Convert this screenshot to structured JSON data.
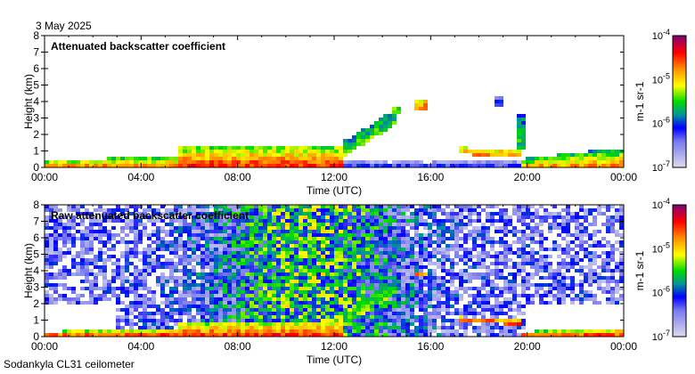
{
  "date_label": "3 May 2025",
  "footer_label": "Sodankyla CL31 ceilometer",
  "chart_data": [
    {
      "type": "heatmap",
      "title": "Attenuated backscatter coefficient",
      "xlabel": "Time (UTC)",
      "ylabel": "Height (km)",
      "xlim": [
        0,
        24
      ],
      "ylim": [
        0,
        8
      ],
      "xticks": [
        "00:00",
        "04:00",
        "08:00",
        "12:00",
        "16:00",
        "20:00",
        "00:00"
      ],
      "yticks": [
        "0",
        "1",
        "2",
        "3",
        "4",
        "5",
        "6",
        "7",
        "8"
      ],
      "colorbar": {
        "label": "m-1 sr-1",
        "ticks": [
          "10-7",
          "10-6",
          "10-5",
          "10-4"
        ],
        "range_log10": [
          -7,
          -4
        ]
      },
      "noise": 0,
      "features": [
        {
          "name": "boundary-layer-night",
          "t": [
            0,
            5.5
          ],
          "h_bottom": [
            0,
            0
          ],
          "h_top": [
            0.4,
            0.7
          ],
          "log_beta": -5.2
        },
        {
          "name": "boundary-layer-day",
          "t": [
            5.5,
            12.3
          ],
          "h_bottom": [
            0,
            0
          ],
          "h_top": [
            1.2,
            1.2
          ],
          "log_beta": -5.0
        },
        {
          "name": "rising-cloud",
          "t": [
            12.3,
            14.5
          ],
          "h_bottom": [
            0.6,
            2.5
          ],
          "h_top": [
            1.5,
            3.5
          ],
          "log_beta": -5.4
        },
        {
          "name": "cloud-14h",
          "t": [
            14.4,
            14.8
          ],
          "h_bottom": [
            3.2,
            3.2
          ],
          "h_top": [
            3.6,
            3.6
          ],
          "log_beta": -5.0
        },
        {
          "name": "cloud-15h",
          "t": [
            15.3,
            15.9
          ],
          "h_bottom": [
            3.5,
            3.5
          ],
          "h_top": [
            4.0,
            4.0
          ],
          "log_beta": -4.6
        },
        {
          "name": "surface-layer-afternoon",
          "t": [
            12.3,
            20
          ],
          "h_bottom": [
            0,
            0
          ],
          "h_top": [
            0.5,
            0.5
          ],
          "log_beta": -6.6
        },
        {
          "name": "cloud-layer-evening",
          "t": [
            17.2,
            19.7
          ],
          "h_bottom": [
            0.8,
            0.6
          ],
          "h_top": [
            1.2,
            1.1
          ],
          "log_beta": -4.8
        },
        {
          "name": "cloud-18h",
          "t": [
            18.6,
            19.1
          ],
          "h_bottom": [
            3.6,
            3.6
          ],
          "h_top": [
            4.3,
            4.3
          ],
          "log_beta": -6.0
        },
        {
          "name": "virga-19h",
          "t": [
            19.6,
            19.9
          ],
          "h_bottom": [
            1,
            1
          ],
          "h_top": [
            3.2,
            3.2
          ],
          "log_beta": -5.5
        },
        {
          "name": "boundary-layer-late",
          "t": [
            19.7,
            24
          ],
          "h_bottom": [
            0,
            0
          ],
          "h_top": [
            0.5,
            1.2
          ],
          "log_beta": -5.3
        }
      ]
    },
    {
      "type": "heatmap",
      "title": "Raw attenuated backscatter coefficient",
      "xlabel": "Time (UTC)",
      "ylabel": "Height (km)",
      "xlim": [
        0,
        24
      ],
      "ylim": [
        0,
        8
      ],
      "xticks": [
        "00:00",
        "04:00",
        "08:00",
        "12:00",
        "16:00",
        "20:00",
        "00:00"
      ],
      "yticks": [
        "0",
        "1",
        "2",
        "3",
        "4",
        "5",
        "6",
        "7",
        "8"
      ],
      "colorbar": {
        "label": "m-1 sr-1",
        "ticks": [
          "10-7",
          "10-6",
          "10-5",
          "10-4"
        ],
        "range_log10": [
          -7,
          -4
        ]
      },
      "noise": 1,
      "features": [
        {
          "name": "boundary-layer-night",
          "t": [
            0,
            5.5
          ],
          "h_bottom": [
            0,
            0
          ],
          "h_top": [
            0.3,
            0.5
          ],
          "log_beta": -5.0
        },
        {
          "name": "boundary-layer-day",
          "t": [
            5.5,
            12.3
          ],
          "h_bottom": [
            0,
            0
          ],
          "h_top": [
            0.8,
            1.0
          ],
          "log_beta": -5.0
        },
        {
          "name": "rising-cloud",
          "t": [
            12.3,
            14.5
          ],
          "h_bottom": [
            0.6,
            2.5
          ],
          "h_top": [
            1.5,
            3.5
          ],
          "log_beta": -5.4
        },
        {
          "name": "cloud-15h",
          "t": [
            15.3,
            15.9
          ],
          "h_bottom": [
            3.6,
            3.6
          ],
          "h_top": [
            3.9,
            3.9
          ],
          "log_beta": -4.6
        },
        {
          "name": "cloud-layer-evening",
          "t": [
            17.2,
            19.7
          ],
          "h_bottom": [
            0.9,
            0.7
          ],
          "h_top": [
            1.2,
            1.0
          ],
          "log_beta": -4.5
        },
        {
          "name": "boundary-layer-late",
          "t": [
            19.7,
            24
          ],
          "h_bottom": [
            0,
            0
          ],
          "h_top": [
            0.3,
            0.5
          ],
          "log_beta": -5.0
        }
      ]
    }
  ]
}
